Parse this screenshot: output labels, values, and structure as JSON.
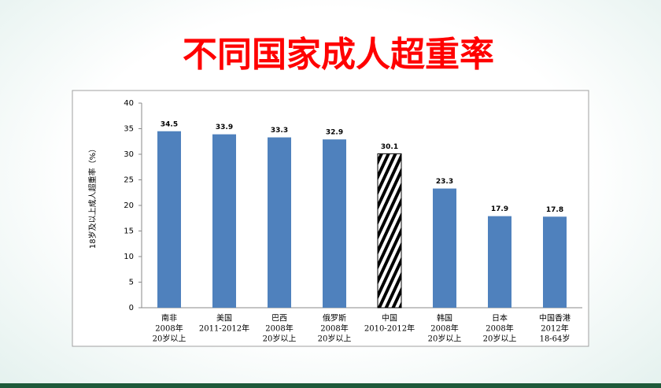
{
  "chart_data": {
    "type": "bar",
    "title": "不同国家成人超重率",
    "y_label": "18岁及以上成人超重率（%）",
    "categories": [
      [
        "南非",
        "2008年",
        "20岁以上"
      ],
      [
        "美国",
        "2011-2012年"
      ],
      [
        "巴西",
        "2008年",
        "20岁以上"
      ],
      [
        "俄罗斯",
        "2008年",
        "20岁以上"
      ],
      [
        "中国",
        "2010-2012年"
      ],
      [
        "韩国",
        "2008年",
        "20岁以上"
      ],
      [
        "日本",
        "2008年",
        "20岁以上"
      ],
      [
        "中国香港",
        "2012年",
        "18-64岁"
      ]
    ],
    "values": [
      34.5,
      33.9,
      33.3,
      32.9,
      30.1,
      23.3,
      17.9,
      17.8
    ],
    "colors": [
      "#4f81bd",
      "#4f81bd",
      "#4f81bd",
      "#4f81bd",
      "hatch",
      "#4f81bd",
      "#4f81bd",
      "#4f81bd"
    ],
    "ylim": [
      0,
      40
    ],
    "yticks": [
      0,
      5,
      10,
      15,
      20,
      25,
      30,
      35,
      40
    ],
    "grid": false
  }
}
